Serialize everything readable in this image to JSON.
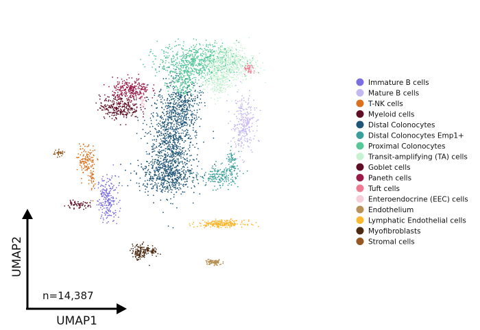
{
  "chart_data": {
    "type": "scatter",
    "title": "",
    "xlabel": "UMAP1",
    "ylabel": "UMAP2",
    "annotation": "n=14,387",
    "legend_position": "right",
    "grid": false,
    "xlim": [
      0,
      100
    ],
    "ylim": [
      0,
      100
    ],
    "series": [
      {
        "name": "Immature B cells",
        "color": "#7b6fe0",
        "clusters": [
          {
            "cx": 24.5,
            "cy": 35.5,
            "sx": 1.6,
            "sy": 4.0,
            "n": 220
          }
        ]
      },
      {
        "name": "Mature B cells",
        "color": "#c4b8f2",
        "clusters": [
          {
            "cx": 65.5,
            "cy": 61.5,
            "sx": 1.8,
            "sy": 5.0,
            "n": 260
          }
        ]
      },
      {
        "name": "T-NK cells",
        "color": "#d9711f",
        "clusters": [
          {
            "cx": 18.0,
            "cy": 49.0,
            "sx": 1.3,
            "sy": 2.6,
            "n": 120
          },
          {
            "cx": 19.5,
            "cy": 41.5,
            "sx": 0.5,
            "sy": 2.8,
            "n": 40
          }
        ]
      },
      {
        "name": "Myeloid cells",
        "color": "#5e0f25",
        "clusters": [
          {
            "cx": 15.0,
            "cy": 33.5,
            "sx": 2.0,
            "sy": 0.6,
            "n": 60
          }
        ]
      },
      {
        "name": "Distal Colonocytes",
        "color": "#1f5578",
        "clusters": [
          {
            "cx": 44.0,
            "cy": 56.0,
            "sx": 3.5,
            "sy": 9.0,
            "n": 900
          },
          {
            "cx": 42.0,
            "cy": 44.0,
            "sx": 4.5,
            "sy": 3.0,
            "n": 400
          },
          {
            "cx": 47.5,
            "cy": 68.0,
            "sx": 2.5,
            "sy": 4.0,
            "n": 250
          }
        ]
      },
      {
        "name": "Distal Colonocytes Emp1+",
        "color": "#3a9f9a",
        "clusters": [
          {
            "cx": 58.5,
            "cy": 43.5,
            "sx": 3.0,
            "sy": 2.0,
            "n": 180
          },
          {
            "cx": 62.0,
            "cy": 48.5,
            "sx": 0.8,
            "sy": 2.2,
            "n": 60
          }
        ]
      },
      {
        "name": "Proximal Colonocytes",
        "color": "#57c79a",
        "clusters": [
          {
            "cx": 52.0,
            "cy": 83.5,
            "sx": 6.0,
            "sy": 3.0,
            "n": 650
          },
          {
            "cx": 47.0,
            "cy": 76.0,
            "sx": 2.2,
            "sy": 3.0,
            "n": 200
          }
        ]
      },
      {
        "name": "Transit-amplifying (TA) cells",
        "color": "#c6f2d2",
        "clusters": [
          {
            "cx": 61.0,
            "cy": 83.0,
            "sx": 4.0,
            "sy": 3.2,
            "n": 500
          },
          {
            "cx": 57.5,
            "cy": 76.0,
            "sx": 2.0,
            "sy": 2.5,
            "n": 180
          }
        ]
      },
      {
        "name": "Goblet cells",
        "color": "#5e0f25",
        "clusters": [
          {
            "cx": 28.0,
            "cy": 67.5,
            "sx": 3.0,
            "sy": 2.0,
            "n": 280
          }
        ]
      },
      {
        "name": "Paneth cells",
        "color": "#9a1b47",
        "clusters": [
          {
            "cx": 31.5,
            "cy": 73.5,
            "sx": 2.8,
            "sy": 2.0,
            "n": 260
          }
        ]
      },
      {
        "name": "Tuft cells",
        "color": "#ee7b92",
        "clusters": [
          {
            "cx": 67.5,
            "cy": 80.5,
            "sx": 0.9,
            "sy": 0.9,
            "n": 40
          }
        ]
      },
      {
        "name": "Enteroendocrine (EEC) cells",
        "color": "#f6cdd8",
        "clusters": [
          {
            "cx": 35.0,
            "cy": 69.0,
            "sx": 0.3,
            "sy": 1.0,
            "n": 25
          }
        ]
      },
      {
        "name": "Endothelium",
        "color": "#b79158",
        "clusters": [
          {
            "cx": 56.5,
            "cy": 13.5,
            "sx": 1.3,
            "sy": 0.5,
            "n": 90
          }
        ]
      },
      {
        "name": "Lymphatic Endothelial cells",
        "color": "#fbb730",
        "clusters": [
          {
            "cx": 59.0,
            "cy": 27.0,
            "sx": 3.5,
            "sy": 0.6,
            "n": 220
          }
        ]
      },
      {
        "name": "Myofibroblasts",
        "color": "#4d2a12",
        "clusters": [
          {
            "cx": 34.0,
            "cy": 17.0,
            "sx": 1.2,
            "sy": 1.5,
            "n": 110
          },
          {
            "cx": 37.5,
            "cy": 17.5,
            "sx": 1.2,
            "sy": 0.8,
            "n": 60
          }
        ]
      },
      {
        "name": "Stromal cells",
        "color": "#955820",
        "clusters": [
          {
            "cx": 9.5,
            "cy": 51.5,
            "sx": 0.9,
            "sy": 0.5,
            "n": 35
          }
        ]
      }
    ]
  }
}
